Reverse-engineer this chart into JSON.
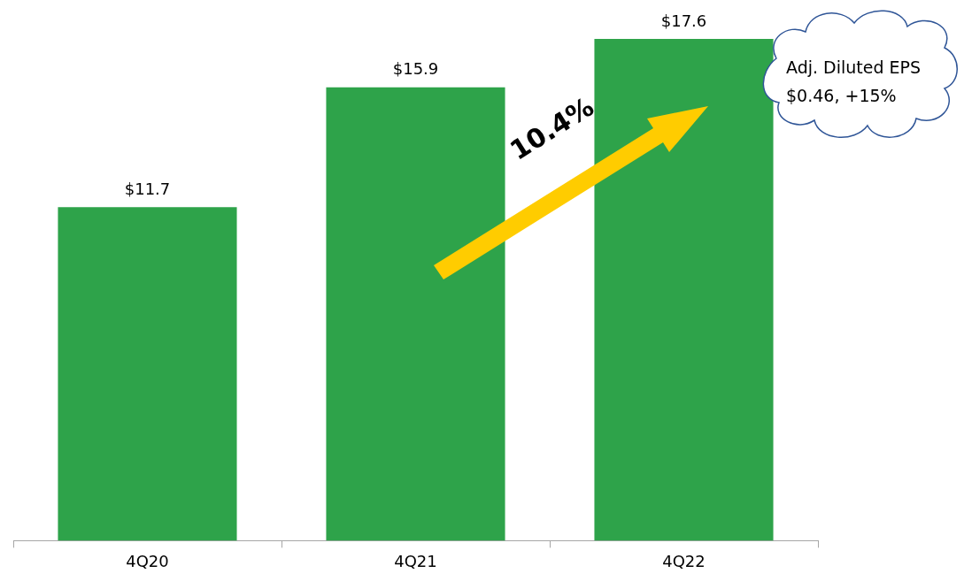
{
  "chart_data": {
    "type": "bar",
    "categories": [
      "4Q20",
      "4Q21",
      "4Q22"
    ],
    "values": [
      11.7,
      15.9,
      17.6
    ],
    "value_labels": [
      "$11.7",
      "$15.9",
      "$17.6"
    ],
    "color": "#2ea34a",
    "tick_labels": "x",
    "legend": false,
    "grid": false,
    "annotations": [
      "10.4%",
      "Adj. Diluted EPS $0.46, +15%"
    ]
  }
}
